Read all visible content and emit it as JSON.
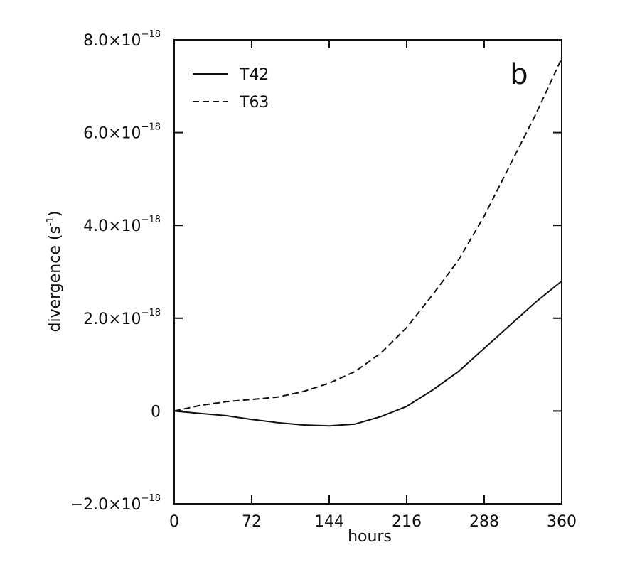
{
  "chart_data": {
    "type": "line",
    "panel_label": "b",
    "xlabel": "hours",
    "ylabel": "divergence (s",
    "ylabel_exponent": "-1",
    "ylabel_close": ")",
    "xlim": [
      0,
      360
    ],
    "ylim": [
      -2e-18,
      8e-18
    ],
    "x_ticks": [
      0,
      72,
      144,
      216,
      288,
      360
    ],
    "x_tick_labels": [
      "0",
      "72",
      "144",
      "216",
      "288",
      "360"
    ],
    "y_ticks": [
      {
        "value": -2e-18,
        "mantissa": "−2.0×10",
        "exponent": "−18"
      },
      {
        "value": 0,
        "mantissa": "0",
        "exponent": ""
      },
      {
        "value": 2e-18,
        "mantissa": "2.0×10",
        "exponent": "−18"
      },
      {
        "value": 4e-18,
        "mantissa": "4.0×10",
        "exponent": "−18"
      },
      {
        "value": 6e-18,
        "mantissa": "6.0×10",
        "exponent": "−18"
      },
      {
        "value": 8e-18,
        "mantissa": "8.0×10",
        "exponent": "−18"
      }
    ],
    "grid": false,
    "legend_position": "top-left",
    "series": [
      {
        "name": "T42",
        "style": "solid",
        "x": [
          0,
          24,
          48,
          72,
          96,
          120,
          144,
          168,
          192,
          216,
          240,
          264,
          288,
          312,
          336,
          360
        ],
        "y": [
          0,
          -5e-20,
          -1e-19,
          -1.8e-19,
          -2.5e-19,
          -3e-19,
          -3.2e-19,
          -2.8e-19,
          -1.2e-19,
          1e-19,
          4.5e-19,
          8.5e-19,
          1.35e-18,
          1.85e-18,
          2.35e-18,
          2.8e-18
        ]
      },
      {
        "name": "T63",
        "style": "dashed",
        "x": [
          0,
          24,
          48,
          72,
          96,
          120,
          144,
          168,
          192,
          216,
          240,
          264,
          288,
          312,
          336,
          360
        ],
        "y": [
          0,
          1.2e-19,
          2e-19,
          2.5e-19,
          3e-19,
          4.2e-19,
          6e-19,
          8.5e-19,
          1.25e-18,
          1.8e-18,
          2.5e-18,
          3.25e-18,
          4.2e-18,
          5.3e-18,
          6.4e-18,
          7.6e-18
        ]
      }
    ]
  }
}
